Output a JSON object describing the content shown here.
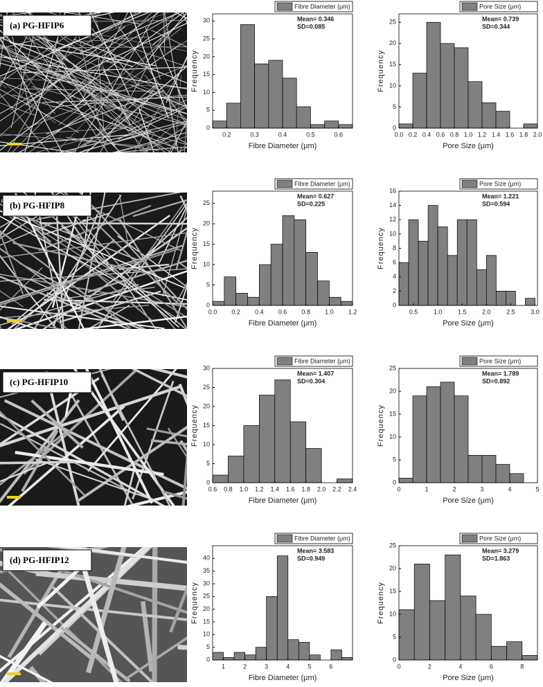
{
  "panels": [
    {
      "label": "(a) PG-HFIP6"
    },
    {
      "label": "(b) PG-HFIP8"
    },
    {
      "label": "(c) PG-HFIP10"
    },
    {
      "label": "(d) PG-HFIP12"
    }
  ],
  "chart_data": [
    {
      "type": "histogram",
      "xlabel": "Fibre Diameter (μm)",
      "ylabel": "Frequency",
      "annotations": [
        "Mean= 0.346",
        "SD=0.085"
      ],
      "bins": [
        0.15,
        0.2,
        0.25,
        0.3,
        0.35,
        0.4,
        0.45,
        0.5,
        0.55,
        0.6,
        0.65
      ],
      "series": [
        {
          "name": "Fibre Diameter (μm)",
          "color": "#808080",
          "values": [
            2,
            7,
            29,
            18,
            19,
            14,
            6,
            1,
            2,
            1
          ]
        }
      ],
      "xlim": [
        0.15,
        0.65
      ],
      "xticks": [
        0.2,
        0.3,
        0.4,
        0.5,
        0.6
      ],
      "ylim": [
        0,
        32
      ],
      "yticks": [
        0,
        5,
        10,
        15,
        20,
        25,
        30
      ]
    },
    {
      "type": "histogram",
      "xlabel": "Pore Size (μm)",
      "ylabel": "Frequency",
      "annotations": [
        "Mean= 0.739",
        "SD=0.344"
      ],
      "bins": [
        0,
        0.2,
        0.4,
        0.6,
        0.8,
        1,
        1.2,
        1.4,
        1.6,
        1.8,
        2
      ],
      "series": [
        {
          "name": "Pore Size (μm)",
          "color": "#808080",
          "values": [
            1,
            13,
            25,
            20,
            19,
            11,
            6,
            4,
            0,
            1
          ]
        }
      ],
      "xlim": [
        0,
        2
      ],
      "xticks": [
        {
          "value": 0,
          "label": "0.0"
        },
        0.2,
        0.4,
        0.6,
        0.8,
        {
          "value": 1,
          "label": "1.0"
        },
        1.2,
        1.4,
        1.6,
        1.8,
        {
          "value": 2,
          "label": "2.0"
        }
      ],
      "ylim": [
        0,
        27
      ],
      "yticks": [
        0,
        5,
        10,
        15,
        20,
        25
      ]
    },
    {
      "type": "histogram",
      "xlabel": "Fibre Diameter (μm)",
      "ylabel": "Frequency",
      "annotations": [
        "Mean= 0.627",
        "SD=0.225"
      ],
      "bins": [
        0,
        0.1,
        0.2,
        0.3,
        0.4,
        0.5,
        0.6,
        0.7,
        0.8,
        0.9,
        1,
        1.1,
        1.2
      ],
      "series": [
        {
          "name": "Fibre Diameter (μm)",
          "color": "#808080",
          "values": [
            1,
            7,
            3,
            2,
            10,
            15,
            22,
            21,
            13,
            6,
            2,
            1
          ]
        }
      ],
      "xlim": [
        0,
        1.2
      ],
      "xticks": [
        {
          "value": 0,
          "label": "0.0"
        },
        0.2,
        0.4,
        0.6,
        0.8,
        {
          "value": 1,
          "label": "1.0"
        },
        1.2
      ],
      "ylim": [
        0,
        28
      ],
      "yticks": [
        0,
        5,
        10,
        15,
        20,
        25
      ]
    },
    {
      "type": "histogram",
      "xlabel": "Pore Size (μm)",
      "ylabel": "Frequency",
      "annotations": [
        "Mean= 1.221",
        "SD=0.594"
      ],
      "bins": [
        0.2,
        0.4,
        0.6,
        0.8,
        1,
        1.2,
        1.4,
        1.6,
        1.8,
        2,
        2.2,
        2.4,
        2.6,
        2.8,
        3
      ],
      "series": [
        {
          "name": "Pore Size (μm)",
          "color": "#808080",
          "values": [
            6,
            12,
            9,
            14,
            11,
            7,
            12,
            12,
            5,
            7,
            2,
            2,
            0,
            1
          ]
        }
      ],
      "xlim": [
        0.2,
        3.05
      ],
      "xticks": [
        0.5,
        {
          "value": 1,
          "label": "1.0"
        },
        1.5,
        {
          "value": 2,
          "label": "2.0"
        },
        2.5,
        {
          "value": 3,
          "label": "3.0"
        }
      ],
      "ylim": [
        0,
        16
      ],
      "yticks": [
        0,
        2,
        4,
        6,
        8,
        10,
        12,
        14,
        16
      ]
    },
    {
      "type": "histogram",
      "xlabel": "Fibre Diameter (μm)",
      "ylabel": "Frequency",
      "annotations": [
        "Mean= 1.407",
        "SD=0.304"
      ],
      "bins": [
        0.6,
        0.8,
        1,
        1.2,
        1.4,
        1.6,
        1.8,
        2,
        2.2,
        2.4
      ],
      "series": [
        {
          "name": "Fibre Diameter (μm)",
          "color": "#808080",
          "values": [
            2,
            7,
            15,
            23,
            27,
            16,
            9,
            0,
            1
          ]
        }
      ],
      "xlim": [
        0.6,
        2.4
      ],
      "xticks": [
        0.6,
        0.8,
        {
          "value": 1,
          "label": "1.0"
        },
        1.2,
        1.4,
        1.6,
        1.8,
        {
          "value": 2,
          "label": "2.0"
        },
        2.2,
        2.4
      ],
      "ylim": [
        0,
        30
      ],
      "yticks": [
        0,
        5,
        10,
        15,
        20,
        25,
        30
      ]
    },
    {
      "type": "histogram",
      "xlabel": "Pore Size (μm)",
      "ylabel": "Frequency",
      "annotations": [
        "Mean= 1.789",
        "SD=0.892"
      ],
      "bins": [
        0,
        0.5,
        1,
        1.5,
        2,
        2.5,
        3,
        3.5,
        4,
        4.5
      ],
      "series": [
        {
          "name": "Pore Size (μm)",
          "color": "#808080",
          "values": [
            1,
            19,
            21,
            22,
            19,
            6,
            6,
            4,
            2
          ]
        }
      ],
      "xlim": [
        0,
        5
      ],
      "xticks": [
        0,
        1,
        2,
        3,
        4,
        5
      ],
      "ylim": [
        0,
        25
      ],
      "yticks": [
        0,
        5,
        10,
        15,
        20,
        25
      ]
    },
    {
      "type": "histogram",
      "xlabel": "Fibre Diameter (μm)",
      "ylabel": "Frequency",
      "annotations": [
        "Mean= 3.583",
        "SD=0.949"
      ],
      "bins": [
        0.5,
        1,
        1.5,
        2,
        2.5,
        3,
        3.5,
        4,
        4.5,
        5,
        5.5,
        6,
        6.5,
        7
      ],
      "series": [
        {
          "name": "Fibre Diameter (μm)",
          "color": "#808080",
          "values": [
            3,
            1,
            3,
            2,
            5,
            25,
            41,
            8,
            7,
            2,
            0,
            4,
            1
          ]
        }
      ],
      "xlim": [
        0.5,
        7
      ],
      "xticks": [
        1,
        2,
        3,
        4,
        5,
        6
      ],
      "ylim": [
        0,
        45
      ],
      "yticks": [
        0,
        5,
        10,
        15,
        20,
        25,
        30,
        35,
        40
      ]
    },
    {
      "type": "histogram",
      "xlabel": "Pore Size (μm)",
      "ylabel": "Frequency",
      "annotations": [
        "Mean= 3.279",
        "SD=1.863"
      ],
      "bins": [
        0,
        1,
        2,
        3,
        4,
        5,
        6,
        7,
        8,
        9
      ],
      "series": [
        {
          "name": "Pore Size (μm)",
          "color": "#808080",
          "values": [
            11,
            21,
            13,
            23,
            14,
            10,
            3,
            4,
            1
          ]
        }
      ],
      "xlim": [
        0,
        9
      ],
      "xticks": [
        0,
        2,
        4,
        6,
        8
      ],
      "ylim": [
        0,
        25
      ],
      "yticks": [
        0,
        5,
        10,
        15,
        20,
        25
      ]
    }
  ]
}
